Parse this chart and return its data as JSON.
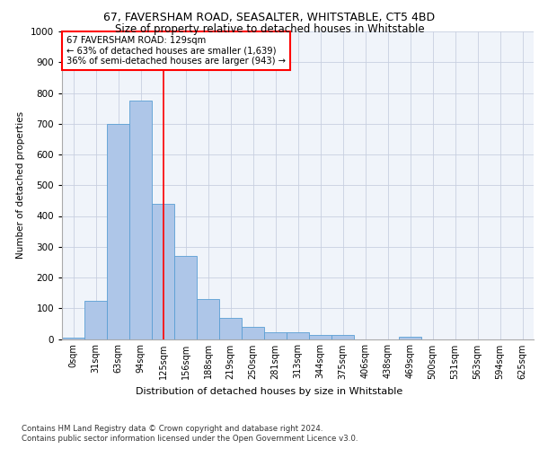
{
  "title1": "67, FAVERSHAM ROAD, SEASALTER, WHITSTABLE, CT5 4BD",
  "title2": "Size of property relative to detached houses in Whitstable",
  "xlabel": "Distribution of detached houses by size in Whitstable",
  "ylabel": "Number of detached properties",
  "categories": [
    "0sqm",
    "31sqm",
    "63sqm",
    "94sqm",
    "125sqm",
    "156sqm",
    "188sqm",
    "219sqm",
    "250sqm",
    "281sqm",
    "313sqm",
    "344sqm",
    "375sqm",
    "406sqm",
    "438sqm",
    "469sqm",
    "500sqm",
    "531sqm",
    "563sqm",
    "594sqm",
    "625sqm"
  ],
  "values": [
    5,
    125,
    700,
    775,
    440,
    270,
    130,
    70,
    40,
    22,
    22,
    12,
    12,
    0,
    0,
    8,
    0,
    0,
    0,
    0,
    0
  ],
  "bar_color": "#aec6e8",
  "bar_edge_color": "#5a9fd4",
  "vline_x_index": 4,
  "vline_color": "red",
  "annotation_text": "67 FAVERSHAM ROAD: 129sqm\n← 63% of detached houses are smaller (1,639)\n36% of semi-detached houses are larger (943) →",
  "annotation_box_color": "white",
  "annotation_box_edge_color": "red",
  "ylim": [
    0,
    1000
  ],
  "yticks": [
    0,
    100,
    200,
    300,
    400,
    500,
    600,
    700,
    800,
    900,
    1000
  ],
  "footer1": "Contains HM Land Registry data © Crown copyright and database right 2024.",
  "footer2": "Contains public sector information licensed under the Open Government Licence v3.0.",
  "bg_color": "#f0f4fa",
  "grid_color": "#c8cfe0"
}
